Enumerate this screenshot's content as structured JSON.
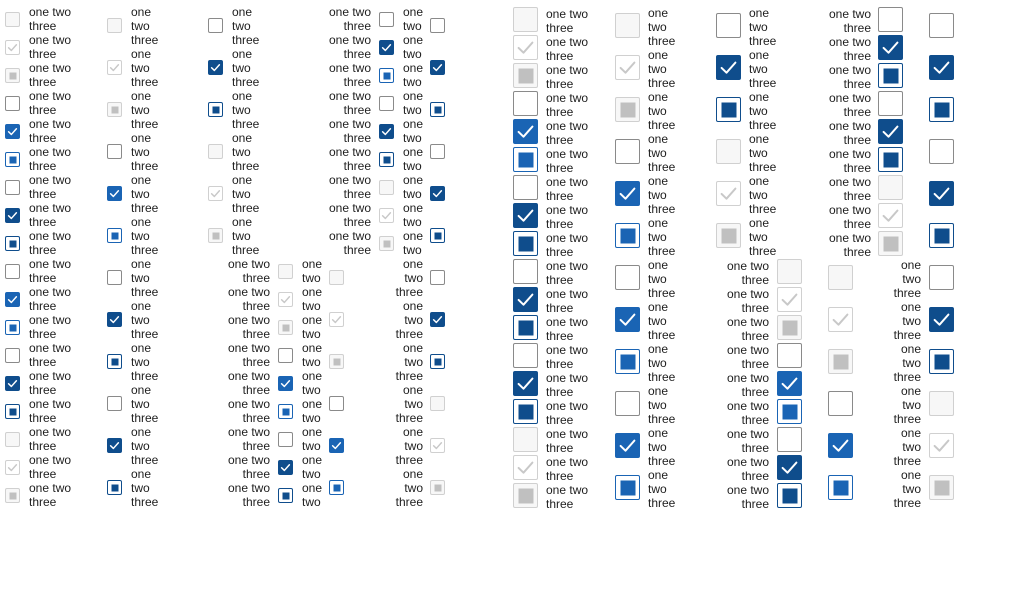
{
  "label_text": "one two three",
  "label_parts": [
    "one",
    "two",
    "three"
  ],
  "states": [
    "unchecked",
    "checked",
    "mixed"
  ],
  "accent": "#1a64b4",
  "accent_dark": "#0f4d8c",
  "disabled": "#c0c0c0",
  "check_icon": "checkmark-icon"
}
